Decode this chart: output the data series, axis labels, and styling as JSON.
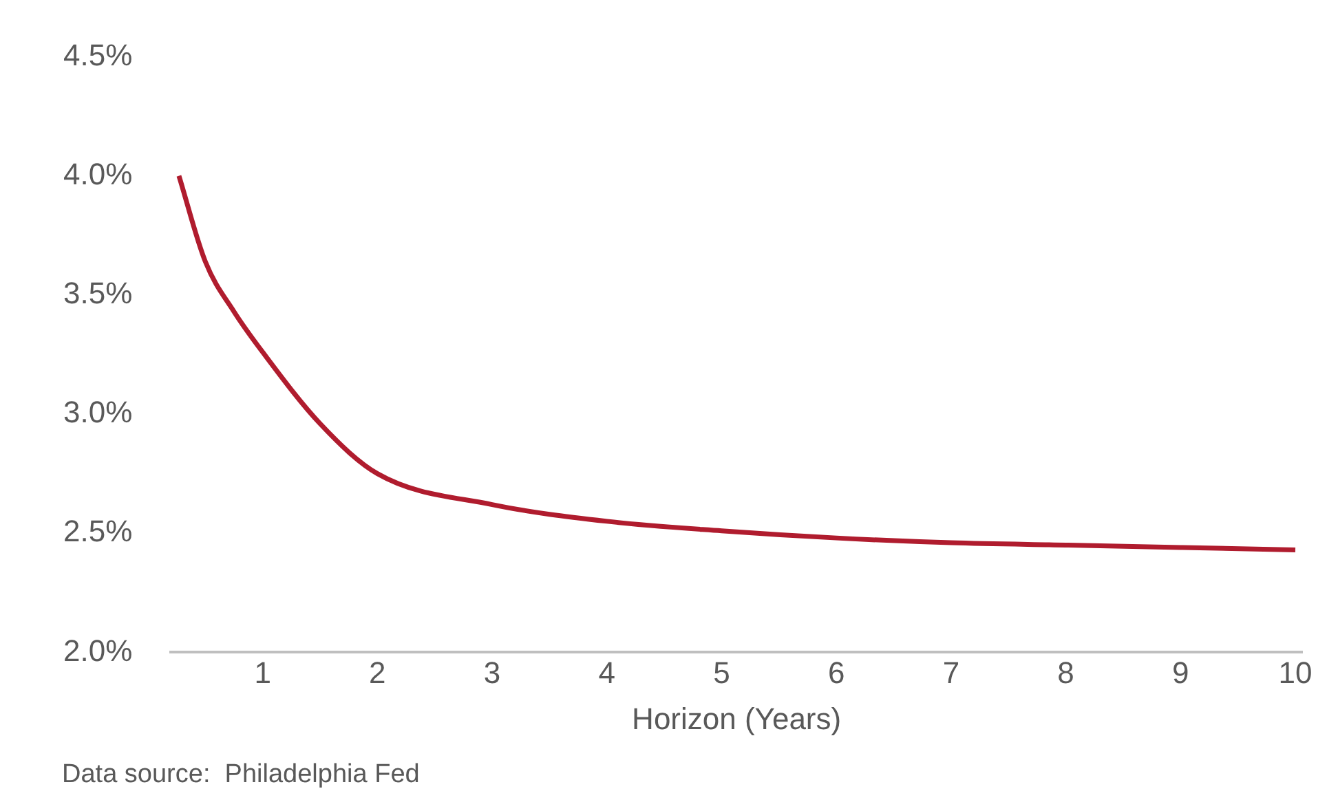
{
  "chart_data": {
    "type": "line",
    "xlabel": "Horizon (Years)",
    "x": [
      0.27,
      0.5,
      0.75,
      1,
      1.5,
      2,
      3,
      4,
      5,
      6,
      7,
      8,
      9,
      10
    ],
    "series": [
      {
        "color": "#b01c2e",
        "values": [
          4.0,
          3.64,
          3.43,
          3.26,
          2.96,
          2.75,
          2.62,
          2.55,
          2.51,
          2.48,
          2.46,
          2.45,
          2.44,
          2.43
        ]
      }
    ],
    "xlim": [
      0.2,
      10.06
    ],
    "xticks": [
      1,
      2,
      3,
      4,
      5,
      6,
      7,
      8,
      9,
      10
    ],
    "ylim": [
      2.0,
      4.5
    ],
    "yticks": [
      {
        "value": 2.0,
        "label": "2.0%"
      },
      {
        "value": 2.5,
        "label": "2.5%"
      },
      {
        "value": 3.0,
        "label": "3.0%"
      },
      {
        "value": 3.5,
        "label": "3.5%"
      },
      {
        "value": 4.0,
        "label": "4.0%"
      },
      {
        "value": 4.5,
        "label": "4.5%"
      }
    ],
    "grid": false,
    "legend": false,
    "marker": "none",
    "line_style": "solid",
    "annotations": [
      "Data source:  Philadelphia Fed"
    ]
  }
}
